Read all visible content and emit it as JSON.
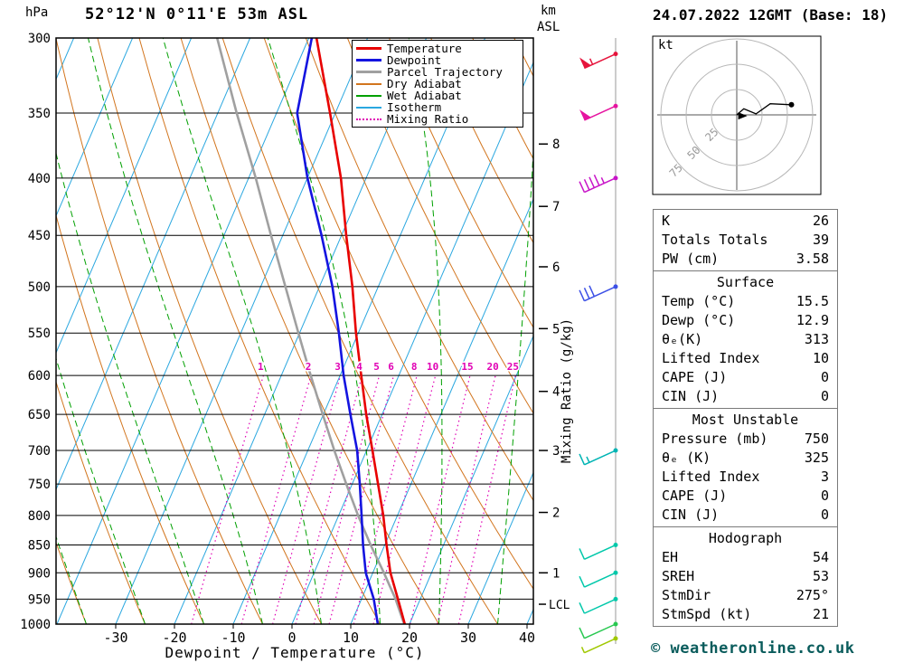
{
  "header": {
    "pressure_unit": "hPa",
    "title": "52°12'N 0°11'E 53m ASL",
    "km_label": "km",
    "asl_label": "ASL",
    "datetime": "24.07.2022 12GMT (Base: 18)"
  },
  "legend": {
    "items": [
      {
        "label": "Temperature",
        "color": "#e80000",
        "style": "solid",
        "weight": 3
      },
      {
        "label": "Dewpoint",
        "color": "#1414e0",
        "style": "solid",
        "weight": 3
      },
      {
        "label": "Parcel Trajectory",
        "color": "#a0a0a0",
        "style": "solid",
        "weight": 3
      },
      {
        "label": "Dry Adiabat",
        "color": "#d2751e",
        "style": "solid",
        "weight": 2
      },
      {
        "label": "Wet Adiabat",
        "color": "#00a000",
        "style": "solid",
        "weight": 2
      },
      {
        "label": "Isotherm",
        "color": "#2aa7e0",
        "style": "solid",
        "weight": 2
      },
      {
        "label": "Mixing Ratio",
        "color": "#e000b4",
        "style": "dotted",
        "weight": 2
      }
    ]
  },
  "chart_data": {
    "type": "line",
    "subtype": "skew-t-log-p",
    "title": "52°12'N 0°11'E 53m ASL",
    "xlabel": "Dewpoint / Temperature (°C)",
    "x_ticks": [
      -30,
      -20,
      -10,
      0,
      10,
      20,
      30,
      40
    ],
    "xlim": [
      -40,
      41
    ],
    "pressure_ticks": [
      300,
      350,
      400,
      450,
      500,
      550,
      600,
      650,
      700,
      750,
      800,
      850,
      900,
      950,
      1000
    ],
    "pressure_range": [
      300,
      1000
    ],
    "pressure_levels": [
      300,
      350,
      400,
      450,
      500,
      550,
      600,
      650,
      700,
      750,
      800,
      850,
      900,
      950,
      1000
    ],
    "series": [
      {
        "name": "Temperature",
        "color": "#e80000",
        "values": [
          -38.7,
          -30.9,
          -24.3,
          -19.2,
          -14.4,
          -10.4,
          -6.4,
          -2.7,
          1.0,
          4.4,
          7.6,
          10.3,
          13.0,
          16.2,
          19.2
        ]
      },
      {
        "name": "Dewpoint",
        "color": "#1414e0",
        "values": [
          -39.5,
          -36.5,
          -30.0,
          -23.4,
          -17.8,
          -13.3,
          -9.4,
          -5.4,
          -1.6,
          1.3,
          3.9,
          6.3,
          8.8,
          12.1,
          14.6
        ]
      },
      {
        "name": "Parcel Trajectory",
        "color": "#a0a0a0",
        "values": [
          -55.6,
          -46.8,
          -38.8,
          -32.0,
          -25.8,
          -20.2,
          -15.0,
          -10.1,
          -5.5,
          -1.0,
          3.3,
          7.6,
          11.9,
          15.8,
          19.1
        ]
      }
    ],
    "background": {
      "isotherm": {
        "color": "#2aa7e0",
        "step": 10
      },
      "dry_adiabat": {
        "color": "#d2751e",
        "step": 10
      },
      "wet_adiabat": {
        "color": "#00a000",
        "step": 10
      },
      "mixing_ratio": {
        "color": "#e000b4",
        "label": "Mixing Ratio (g/kg)",
        "values": [
          1,
          2,
          3,
          4,
          5,
          6,
          8,
          10,
          15,
          20,
          25
        ]
      }
    },
    "km_axis": {
      "ticks": [
        {
          "km": 1,
          "p": 900
        },
        {
          "km": 2,
          "p": 795
        },
        {
          "km": 3,
          "p": 700
        },
        {
          "km": 4,
          "p": 620
        },
        {
          "km": 5,
          "p": 545
        },
        {
          "km": 6,
          "p": 480
        },
        {
          "km": 7,
          "p": 424
        },
        {
          "km": 8,
          "p": 373
        }
      ],
      "lcl": {
        "label": "LCL",
        "p": 960
      }
    }
  },
  "wind_barbs": [
    {
      "p": 310,
      "speed": 55,
      "color": "#e6143c"
    },
    {
      "p": 345,
      "speed": 50,
      "color": "#e614a0"
    },
    {
      "p": 400,
      "speed": 45,
      "color": "#c814c8"
    },
    {
      "p": 500,
      "speed": 30,
      "color": "#3c50e6"
    },
    {
      "p": 700,
      "speed": 15,
      "color": "#00b4b4"
    },
    {
      "p": 850,
      "speed": 10,
      "color": "#00c8aa"
    },
    {
      "p": 900,
      "speed": 10,
      "color": "#00c8aa"
    },
    {
      "p": 950,
      "speed": 10,
      "color": "#00c8aa"
    },
    {
      "p": 1000,
      "speed": 10,
      "color": "#28c850"
    },
    {
      "p": 1030,
      "speed": 5,
      "color": "#a0c800"
    }
  ],
  "hodograph": {
    "unit": "kt",
    "rings": [
      25,
      50,
      75
    ],
    "trace_uv_kt": [
      [
        0,
        0
      ],
      [
        7,
        6
      ],
      [
        19,
        1
      ],
      [
        33,
        11
      ],
      [
        54,
        10
      ]
    ],
    "storm_arrow_uv": [
      5,
      -1
    ]
  },
  "panels": {
    "summary": {
      "rows": [
        {
          "label": "K",
          "value": "26"
        },
        {
          "label": "Totals Totals",
          "value": "39"
        },
        {
          "label": "PW (cm)",
          "value": "3.58"
        }
      ]
    },
    "surface": {
      "title": "Surface",
      "rows": [
        {
          "label": "Temp (°C)",
          "value": "15.5"
        },
        {
          "label": "Dewp (°C)",
          "value": "12.9"
        },
        {
          "label": "θₑ(K)",
          "value": "313"
        },
        {
          "label": "Lifted Index",
          "value": "10"
        },
        {
          "label": "CAPE (J)",
          "value": "0"
        },
        {
          "label": "CIN (J)",
          "value": "0"
        }
      ]
    },
    "most_unstable": {
      "title": "Most Unstable",
      "rows": [
        {
          "label": "Pressure (mb)",
          "value": "750"
        },
        {
          "label": "θₑ (K)",
          "value": "325"
        },
        {
          "label": "Lifted Index",
          "value": "3"
        },
        {
          "label": "CAPE (J)",
          "value": "0"
        },
        {
          "label": "CIN (J)",
          "value": "0"
        }
      ]
    },
    "hodograph_stats": {
      "title": "Hodograph",
      "rows": [
        {
          "label": "EH",
          "value": "54"
        },
        {
          "label": "SREH",
          "value": "53"
        },
        {
          "label": "StmDir",
          "value": "275°"
        },
        {
          "label": "StmSpd (kt)",
          "value": "21"
        }
      ]
    }
  },
  "footer": {
    "copyright": "© weatheronline.co.uk"
  }
}
